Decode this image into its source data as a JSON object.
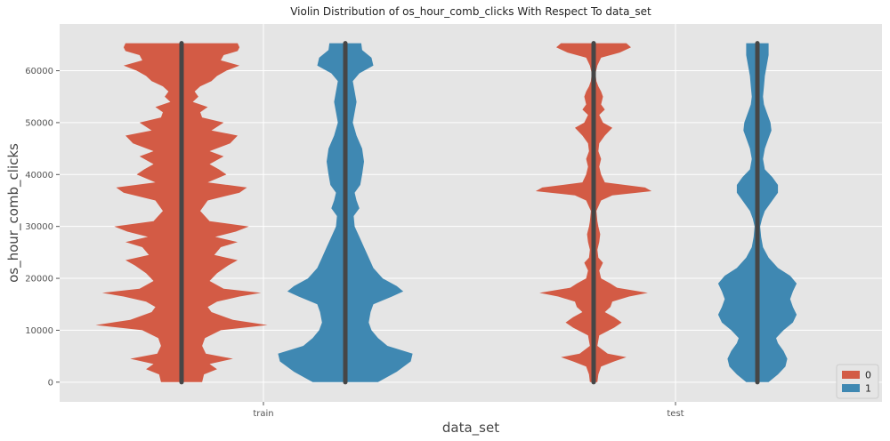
{
  "chart_data": {
    "type": "violin",
    "title": "Violin Distribution of os_hour_comb_clicks With Respect To data_set",
    "xlabel": "data_set",
    "ylabel": "os_hour_comb_clicks",
    "categories": [
      "train",
      "test"
    ],
    "ylim": [
      -3800,
      69000
    ],
    "yticks": [
      0,
      10000,
      20000,
      30000,
      40000,
      50000,
      60000
    ],
    "ytick_labels": [
      "0",
      "10000",
      "20000",
      "30000",
      "40000",
      "50000",
      "60000"
    ],
    "grid": true,
    "legend": {
      "placement": "bottom-right",
      "entries": [
        "0",
        "1"
      ]
    },
    "colors": {
      "0": "#d35b45",
      "1": "#3f88b2",
      "background": "#e5e5e5",
      "grid": "#ffffff",
      "inner": "#464646"
    },
    "series": [
      {
        "name": "0",
        "category": "train",
        "data_min": 0,
        "data_max": 65300,
        "density": [
          [
            0,
            0.22
          ],
          [
            1500,
            0.24
          ],
          [
            2500,
            0.38
          ],
          [
            3500,
            0.3
          ],
          [
            4500,
            0.55
          ],
          [
            5500,
            0.26
          ],
          [
            7000,
            0.22
          ],
          [
            8500,
            0.25
          ],
          [
            10000,
            0.42
          ],
          [
            11000,
            0.92
          ],
          [
            12000,
            0.55
          ],
          [
            13500,
            0.32
          ],
          [
            14500,
            0.28
          ],
          [
            15500,
            0.38
          ],
          [
            16500,
            0.62
          ],
          [
            17200,
            0.85
          ],
          [
            18000,
            0.45
          ],
          [
            19500,
            0.3
          ],
          [
            21000,
            0.38
          ],
          [
            22500,
            0.5
          ],
          [
            23500,
            0.6
          ],
          [
            24500,
            0.35
          ],
          [
            26000,
            0.42
          ],
          [
            27000,
            0.6
          ],
          [
            28000,
            0.36
          ],
          [
            29000,
            0.58
          ],
          [
            30000,
            0.72
          ],
          [
            31000,
            0.3
          ],
          [
            33000,
            0.2
          ],
          [
            35000,
            0.28
          ],
          [
            36500,
            0.62
          ],
          [
            37500,
            0.7
          ],
          [
            38500,
            0.28
          ],
          [
            40000,
            0.48
          ],
          [
            41000,
            0.4
          ],
          [
            42000,
            0.3
          ],
          [
            43500,
            0.45
          ],
          [
            44500,
            0.3
          ],
          [
            46000,
            0.52
          ],
          [
            47500,
            0.6
          ],
          [
            48500,
            0.32
          ],
          [
            50000,
            0.45
          ],
          [
            51000,
            0.22
          ],
          [
            52000,
            0.2
          ],
          [
            53000,
            0.28
          ],
          [
            54000,
            0.12
          ],
          [
            55000,
            0.18
          ],
          [
            56000,
            0.14
          ],
          [
            57000,
            0.2
          ],
          [
            58000,
            0.32
          ],
          [
            59000,
            0.38
          ],
          [
            60000,
            0.48
          ],
          [
            61000,
            0.62
          ],
          [
            62000,
            0.42
          ],
          [
            63000,
            0.45
          ],
          [
            63800,
            0.6
          ],
          [
            64500,
            0.62
          ],
          [
            65300,
            0.6
          ]
        ]
      },
      {
        "name": "1",
        "category": "train",
        "data_min": 0,
        "data_max": 65300,
        "density": [
          [
            0,
            0.35
          ],
          [
            2000,
            0.55
          ],
          [
            4000,
            0.7
          ],
          [
            5500,
            0.72
          ],
          [
            7000,
            0.45
          ],
          [
            8500,
            0.35
          ],
          [
            10000,
            0.28
          ],
          [
            11500,
            0.25
          ],
          [
            13500,
            0.27
          ],
          [
            15000,
            0.3
          ],
          [
            16500,
            0.5
          ],
          [
            17500,
            0.62
          ],
          [
            18500,
            0.55
          ],
          [
            20000,
            0.4
          ],
          [
            22000,
            0.3
          ],
          [
            24000,
            0.25
          ],
          [
            26000,
            0.2
          ],
          [
            28000,
            0.15
          ],
          [
            30000,
            0.1
          ],
          [
            32000,
            0.09
          ],
          [
            33500,
            0.15
          ],
          [
            35000,
            0.12
          ],
          [
            36500,
            0.1
          ],
          [
            38000,
            0.16
          ],
          [
            40000,
            0.18
          ],
          [
            42500,
            0.2
          ],
          [
            45000,
            0.18
          ],
          [
            47500,
            0.12
          ],
          [
            50000,
            0.08
          ],
          [
            52000,
            0.1
          ],
          [
            54000,
            0.12
          ],
          [
            56000,
            0.1
          ],
          [
            58000,
            0.08
          ],
          [
            59500,
            0.15
          ],
          [
            61000,
            0.3
          ],
          [
            62500,
            0.28
          ],
          [
            64000,
            0.18
          ],
          [
            65300,
            0.17
          ]
        ]
      },
      {
        "name": "0",
        "category": "test",
        "data_min": 0,
        "data_max": 65300,
        "density": [
          [
            0,
            0.04
          ],
          [
            1500,
            0.05
          ],
          [
            3000,
            0.08
          ],
          [
            4000,
            0.22
          ],
          [
            4800,
            0.35
          ],
          [
            5500,
            0.15
          ],
          [
            7000,
            0.04
          ],
          [
            9000,
            0.06
          ],
          [
            10500,
            0.22
          ],
          [
            11500,
            0.3
          ],
          [
            12500,
            0.22
          ],
          [
            13500,
            0.12
          ],
          [
            14500,
            0.18
          ],
          [
            15500,
            0.2
          ],
          [
            16500,
            0.38
          ],
          [
            17200,
            0.58
          ],
          [
            18200,
            0.25
          ],
          [
            19000,
            0.18
          ],
          [
            20000,
            0.08
          ],
          [
            21500,
            0.06
          ],
          [
            23000,
            0.1
          ],
          [
            24000,
            0.05
          ],
          [
            25500,
            0.04
          ],
          [
            27000,
            0.06
          ],
          [
            28500,
            0.07
          ],
          [
            30000,
            0.05
          ],
          [
            31000,
            0.04
          ],
          [
            33000,
            0.03
          ],
          [
            35000,
            0.08
          ],
          [
            36000,
            0.2
          ],
          [
            36800,
            0.62
          ],
          [
            37500,
            0.55
          ],
          [
            38500,
            0.12
          ],
          [
            40000,
            0.08
          ],
          [
            41500,
            0.06
          ],
          [
            43000,
            0.08
          ],
          [
            44500,
            0.05
          ],
          [
            46000,
            0.06
          ],
          [
            47500,
            0.12
          ],
          [
            49000,
            0.2
          ],
          [
            50000,
            0.1
          ],
          [
            51500,
            0.06
          ],
          [
            52500,
            0.12
          ],
          [
            53500,
            0.08
          ],
          [
            55000,
            0.1
          ],
          [
            56000,
            0.08
          ],
          [
            57000,
            0.05
          ],
          [
            58000,
            0.03
          ],
          [
            59500,
            0.02
          ],
          [
            61000,
            0.04
          ],
          [
            62500,
            0.08
          ],
          [
            63500,
            0.28
          ],
          [
            64500,
            0.4
          ],
          [
            65300,
            0.35
          ]
        ]
      },
      {
        "name": "1",
        "category": "test",
        "data_min": 0,
        "data_max": 65300,
        "density": [
          [
            0,
            0.12
          ],
          [
            1500,
            0.22
          ],
          [
            3000,
            0.3
          ],
          [
            4500,
            0.32
          ],
          [
            6000,
            0.28
          ],
          [
            7500,
            0.22
          ],
          [
            8500,
            0.2
          ],
          [
            10000,
            0.28
          ],
          [
            11500,
            0.38
          ],
          [
            13000,
            0.42
          ],
          [
            14500,
            0.38
          ],
          [
            16000,
            0.35
          ],
          [
            17500,
            0.38
          ],
          [
            19000,
            0.42
          ],
          [
            20500,
            0.35
          ],
          [
            22000,
            0.22
          ],
          [
            24000,
            0.12
          ],
          [
            26000,
            0.06
          ],
          [
            28000,
            0.04
          ],
          [
            30000,
            0.03
          ],
          [
            31500,
            0.05
          ],
          [
            33000,
            0.08
          ],
          [
            35000,
            0.16
          ],
          [
            36500,
            0.22
          ],
          [
            38000,
            0.22
          ],
          [
            39500,
            0.16
          ],
          [
            41000,
            0.08
          ],
          [
            43000,
            0.06
          ],
          [
            45000,
            0.08
          ],
          [
            47000,
            0.12
          ],
          [
            48500,
            0.15
          ],
          [
            50000,
            0.14
          ],
          [
            52000,
            0.1
          ],
          [
            53500,
            0.07
          ],
          [
            55000,
            0.06
          ],
          [
            57000,
            0.07
          ],
          [
            59000,
            0.08
          ],
          [
            61000,
            0.1
          ],
          [
            63000,
            0.12
          ],
          [
            64500,
            0.12
          ],
          [
            65300,
            0.12
          ]
        ]
      }
    ]
  }
}
